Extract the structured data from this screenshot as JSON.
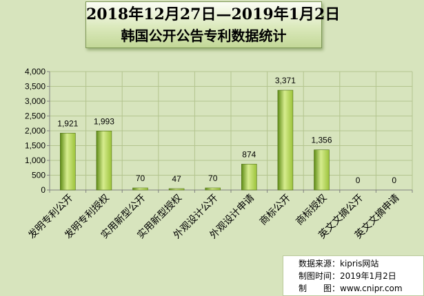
{
  "title": {
    "line1": "2018年12月27日—2019年1月2日",
    "line2": "韩国公开公告专利数据统计"
  },
  "source": {
    "line1": "数据来源：kipris网站",
    "line2": "制图时间：2019年1月2日",
    "line3": "制　　图：www.cnipr.com"
  },
  "colors": {
    "background": "#d7e4bd",
    "bar_light": "#d6ec8e",
    "bar_mid": "#9cc33b",
    "bar_dark": "#5e8a16",
    "bar_outline": "#4f6f16"
  },
  "chart_data": {
    "type": "bar",
    "categories": [
      "发明专利公开",
      "发明专利授权",
      "实用新型公开",
      "实用新型授权",
      "外观设计公开",
      "外观设计申请",
      "商标公开",
      "商标授权",
      "英文文摘公开",
      "英文文摘申请"
    ],
    "values": [
      1921,
      1993,
      70,
      47,
      70,
      874,
      3371,
      1356,
      0,
      0
    ],
    "data_labels": [
      "1,921",
      "1,993",
      "70",
      "47",
      "70",
      "874",
      "3,371",
      "1,356",
      "0",
      "0"
    ],
    "ylim": [
      0,
      4000
    ],
    "yticks": [
      0,
      500,
      1000,
      1500,
      2000,
      2500,
      3000,
      3500,
      4000
    ],
    "ytick_labels": [
      "0",
      "500",
      "1,000",
      "1,500",
      "2,000",
      "2,500",
      "3,000",
      "3,500",
      "4,000"
    ],
    "grid": true,
    "legend": "none",
    "xlabel": "",
    "ylabel": ""
  }
}
